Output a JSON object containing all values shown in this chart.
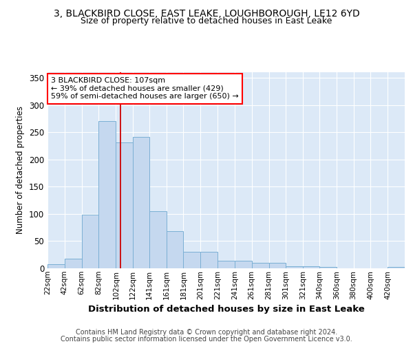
{
  "title_line1": "3, BLACKBIRD CLOSE, EAST LEAKE, LOUGHBOROUGH, LE12 6YD",
  "title_line2": "Size of property relative to detached houses in East Leake",
  "xlabel": "Distribution of detached houses by size in East Leake",
  "ylabel": "Number of detached properties",
  "footer_line1": "Contains HM Land Registry data © Crown copyright and database right 2024.",
  "footer_line2": "Contains public sector information licensed under the Open Government Licence v3.0.",
  "annotation_line1": "3 BLACKBIRD CLOSE: 107sqm",
  "annotation_line2": "← 39% of detached houses are smaller (429)",
  "annotation_line3": "59% of semi-detached houses are larger (650) →",
  "bar_left_edges": [
    22,
    42,
    62,
    82,
    102,
    122,
    141,
    161,
    181,
    201,
    221,
    241,
    261,
    281,
    301,
    321,
    340,
    360,
    380,
    400,
    420
  ],
  "bar_widths": [
    20,
    20,
    20,
    20,
    20,
    19,
    20,
    20,
    20,
    20,
    20,
    20,
    20,
    20,
    20,
    19,
    20,
    20,
    20,
    20,
    20
  ],
  "bar_heights": [
    7,
    18,
    99,
    270,
    231,
    241,
    105,
    68,
    30,
    30,
    14,
    14,
    10,
    10,
    4,
    4,
    3,
    0,
    0,
    0,
    3
  ],
  "bar_color": "#c5d8ef",
  "bar_edge_color": "#7aafd4",
  "vline_color": "#cc0000",
  "vline_x": 107,
  "ylim": [
    0,
    360
  ],
  "yticks": [
    0,
    50,
    100,
    150,
    200,
    250,
    300,
    350
  ],
  "bg_color": "#dce9f7",
  "grid_color": "#ffffff",
  "tick_labels": [
    "22sqm",
    "42sqm",
    "62sqm",
    "82sqm",
    "102sqm",
    "122sqm",
    "141sqm",
    "161sqm",
    "181sqm",
    "201sqm",
    "221sqm",
    "241sqm",
    "261sqm",
    "281sqm",
    "301sqm",
    "321sqm",
    "340sqm",
    "360sqm",
    "380sqm",
    "400sqm",
    "420sqm"
  ]
}
